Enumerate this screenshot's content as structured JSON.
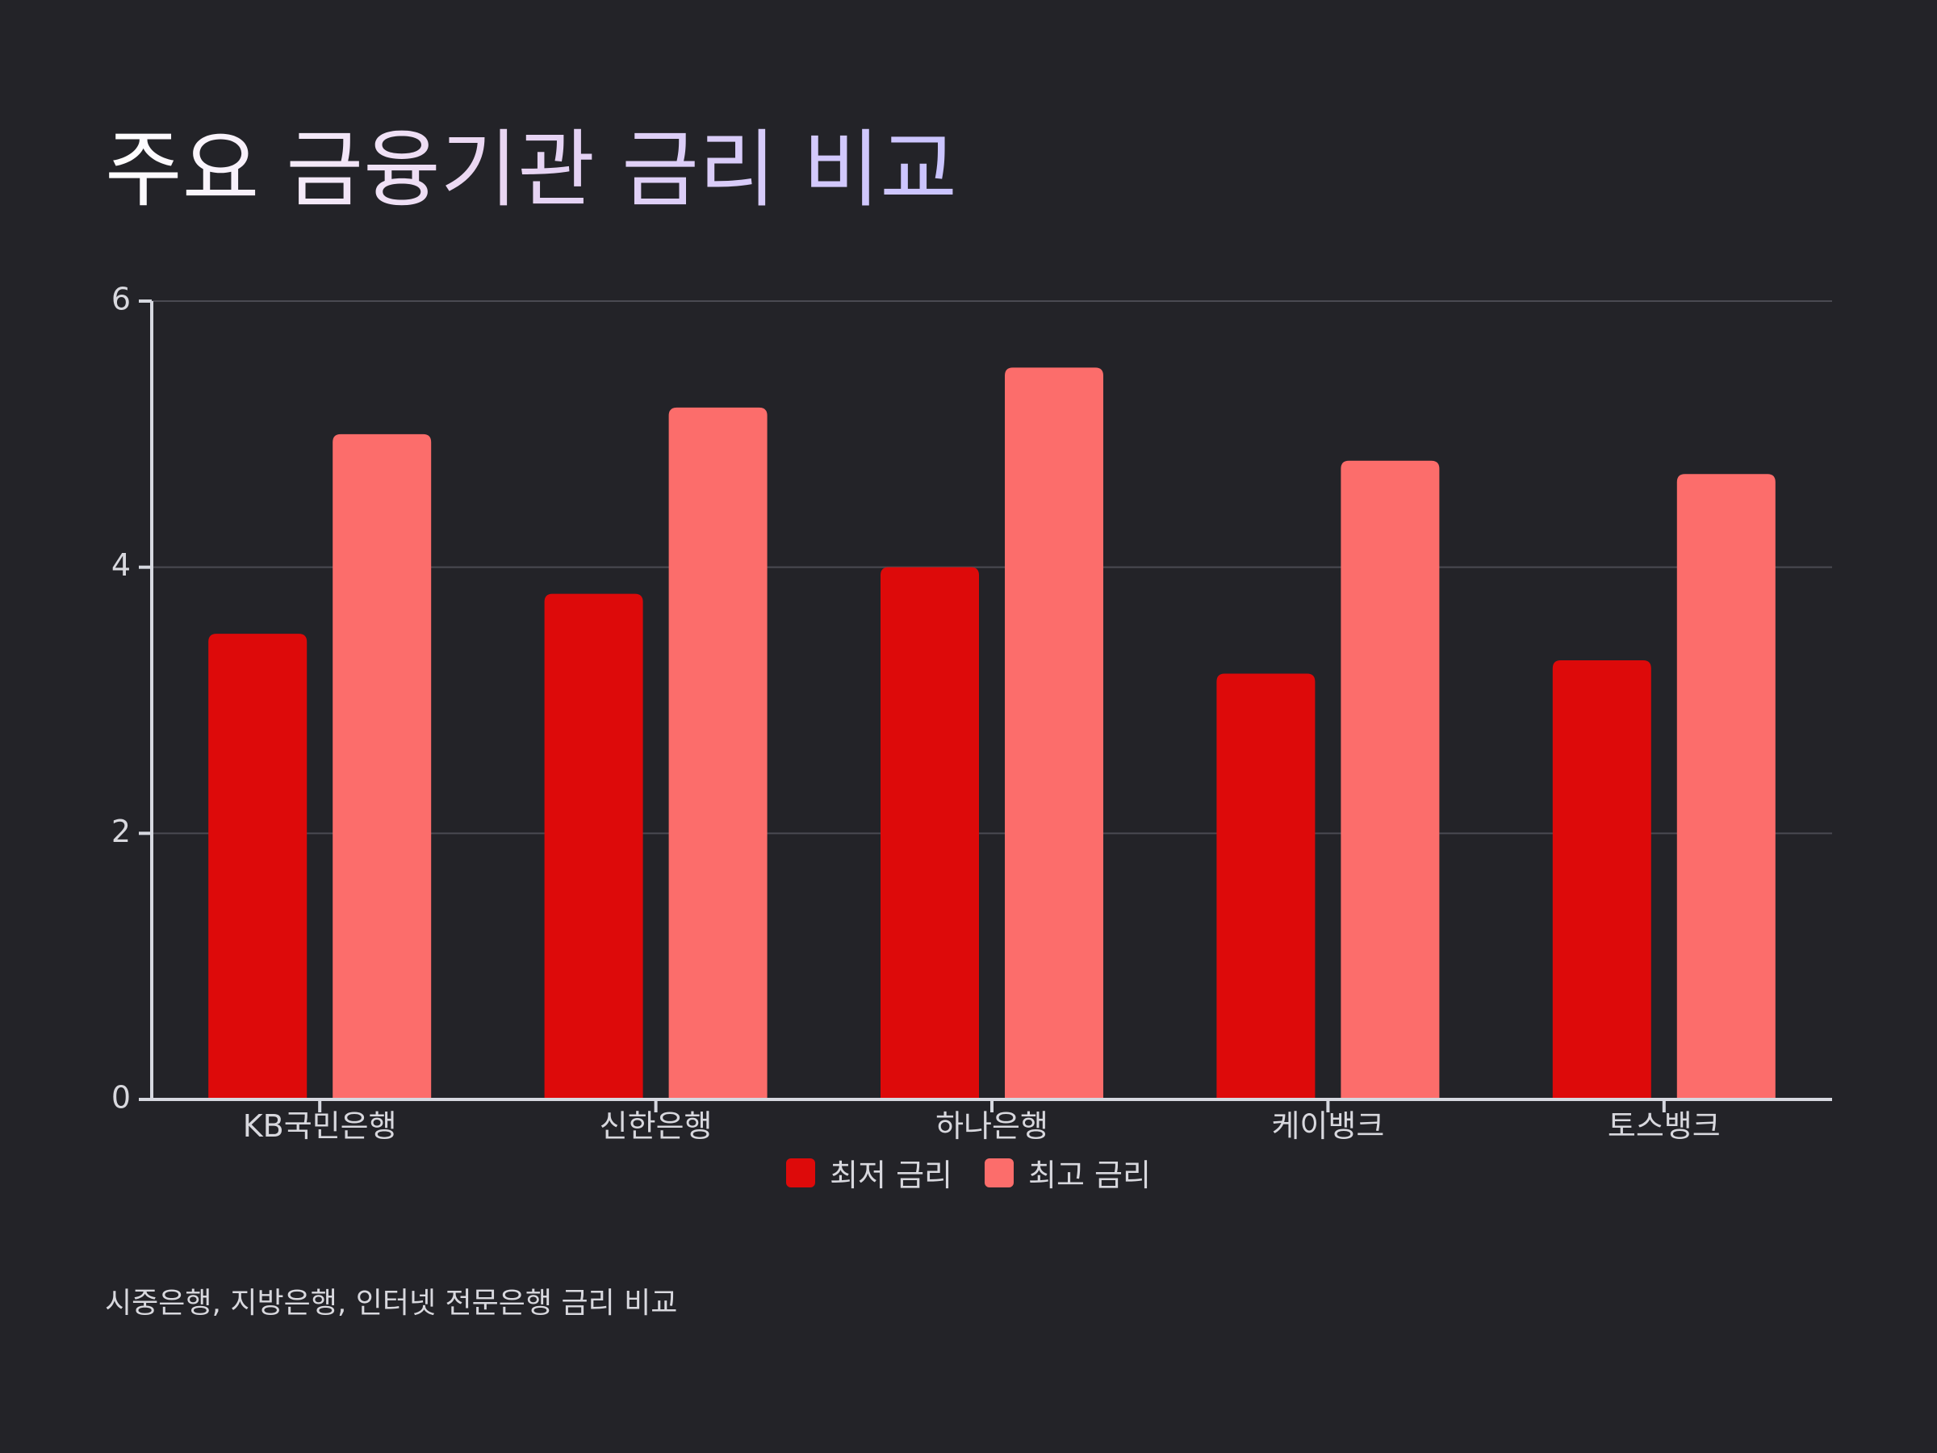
{
  "title": "주요 금융기관 금리 비교",
  "subtitle": "시중은행, 지방은행, 인터넷 전문은행 금리 비교",
  "colors": {
    "background": "#232328",
    "series_min": "#dd0a0a",
    "series_max": "#fc6d6b",
    "axis": "#d6d8e0",
    "grid": "#4a4a52",
    "text": "#d8d8de"
  },
  "chart_data": {
    "type": "bar",
    "categories": [
      "KB국민은행",
      "신한은행",
      "하나은행",
      "케이뱅크",
      "토스뱅크"
    ],
    "series": [
      {
        "name": "최저 금리",
        "values": [
          3.5,
          3.8,
          4.0,
          3.2,
          3.3
        ]
      },
      {
        "name": "최고 금리",
        "values": [
          5.0,
          5.2,
          5.5,
          4.8,
          4.7
        ]
      }
    ],
    "yticks": [
      "0",
      "2",
      "4",
      "6"
    ],
    "ylim": [
      0,
      6
    ],
    "grid": true,
    "legend": "bottom-center"
  }
}
